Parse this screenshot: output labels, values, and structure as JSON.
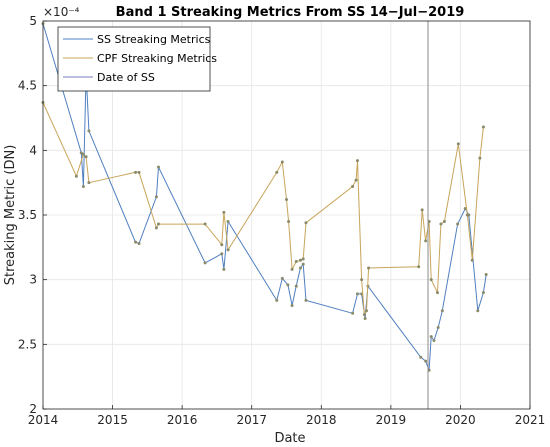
{
  "chart_data": {
    "type": "line",
    "title": "Band 1 Streaking Metrics From SS 14−Jul−2019",
    "xlabel": "Date",
    "ylabel": "Streaking Metric (DN)",
    "y_exponent_label": "×10⁻⁴",
    "xlim": [
      2014,
      2021
    ],
    "ylim": [
      2,
      5
    ],
    "x_ticks": [
      2014,
      2015,
      2016,
      2017,
      2018,
      2019,
      2020,
      2021
    ],
    "y_ticks": [
      2,
      2.5,
      3,
      3.5,
      4,
      4.5,
      5
    ],
    "y_tick_labels": [
      "2",
      "2.5",
      "3",
      "3.5",
      "4",
      "4.5",
      "5"
    ],
    "grid": true,
    "legend_position": "top-left",
    "series": [
      {
        "name": "SS Streaking Metrics",
        "color": "#4f7fc0",
        "x": [
          2014.0,
          2014.55,
          2014.58,
          2014.62,
          2014.66,
          2015.33,
          2015.38,
          2015.63,
          2015.66,
          2016.33,
          2016.57,
          2016.6,
          2016.66,
          2017.36,
          2017.44,
          2017.52,
          2017.58,
          2017.64,
          2017.7,
          2017.74,
          2017.78,
          2018.45,
          2018.52,
          2018.58,
          2018.63,
          2018.67,
          2019.43,
          2019.5,
          2019.55,
          2019.58,
          2019.62,
          2019.68,
          2019.74,
          2019.96,
          2020.07,
          2020.12,
          2020.25,
          2020.33,
          2020.37
        ],
        "y": [
          4.98,
          3.98,
          3.72,
          4.6,
          4.15,
          3.29,
          3.28,
          3.64,
          3.87,
          3.13,
          3.2,
          3.08,
          3.45,
          2.84,
          3.01,
          2.96,
          2.8,
          2.95,
          3.09,
          3.12,
          2.84,
          2.74,
          2.89,
          2.89,
          2.7,
          2.95,
          2.4,
          2.37,
          2.3,
          2.56,
          2.53,
          2.63,
          2.76,
          3.43,
          3.55,
          3.5,
          2.76,
          2.9,
          3.04
        ]
      },
      {
        "name": "CPF Streaking Metrics",
        "color": "#c8a55a",
        "x": [
          2014.0,
          2014.48,
          2014.58,
          2014.62,
          2014.66,
          2015.33,
          2015.38,
          2015.63,
          2015.66,
          2016.33,
          2016.57,
          2016.6,
          2016.66,
          2017.36,
          2017.44,
          2017.5,
          2017.53,
          2017.58,
          2017.64,
          2017.7,
          2017.74,
          2017.78,
          2018.45,
          2018.5,
          2018.52,
          2018.58,
          2018.62,
          2018.65,
          2018.68,
          2019.4,
          2019.45,
          2019.5,
          2019.55,
          2019.58,
          2019.67,
          2019.72,
          2019.77,
          2019.97,
          2020.1,
          2020.17,
          2020.28,
          2020.33
        ],
        "y": [
          4.37,
          3.8,
          3.97,
          3.95,
          3.75,
          3.83,
          3.83,
          3.4,
          3.43,
          3.43,
          3.27,
          3.52,
          3.23,
          3.83,
          3.91,
          3.62,
          3.45,
          3.08,
          3.14,
          3.15,
          3.16,
          3.44,
          3.72,
          3.77,
          3.92,
          3.0,
          2.73,
          2.76,
          3.09,
          3.1,
          3.54,
          3.3,
          3.45,
          3.0,
          2.9,
          3.43,
          3.45,
          4.05,
          3.5,
          3.15,
          3.94,
          4.18
        ]
      },
      {
        "name": "Date of SS",
        "color": "#7a7abf",
        "vertical_line_x": 2019.534
      }
    ]
  }
}
